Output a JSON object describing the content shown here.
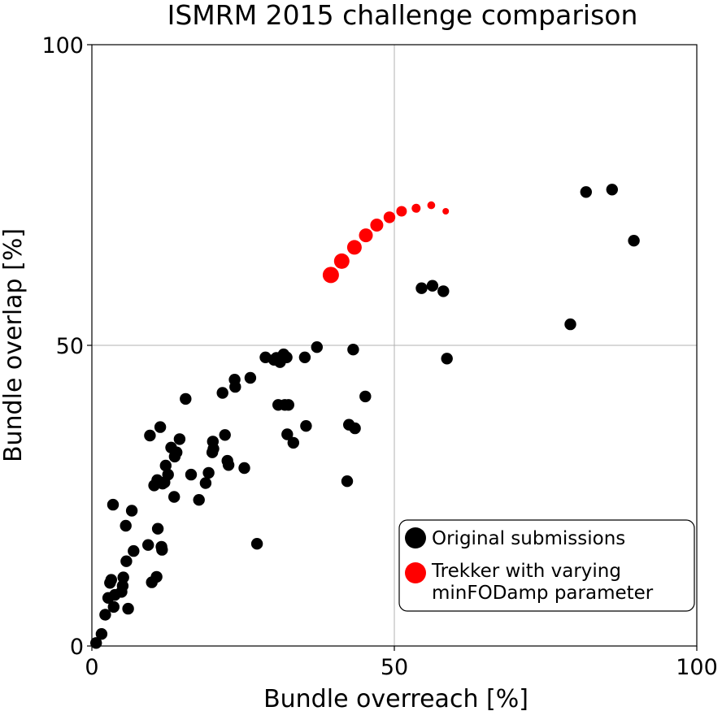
{
  "chart_data": {
    "type": "scatter",
    "title": "ISMRM 2015 challenge comparison",
    "xlabel": "Bundle overreach [%]",
    "ylabel": "Bundle overlap [%]",
    "xlim": [
      0,
      100
    ],
    "ylim": [
      0,
      100
    ],
    "xticks": [
      "0",
      "50",
      "100"
    ],
    "yticks": [
      "0",
      "50",
      "100"
    ],
    "grid": true,
    "legend_position": "lower-right",
    "series": [
      {
        "name": "Original submissions",
        "color": "#000000",
        "points": [
          [
            0.7,
            0.5
          ],
          [
            1.6,
            2.0
          ],
          [
            2.2,
            5.2
          ],
          [
            2.7,
            8.0
          ],
          [
            3.0,
            10.5
          ],
          [
            3.2,
            11.0
          ],
          [
            3.5,
            23.5
          ],
          [
            3.6,
            6.5
          ],
          [
            3.8,
            8.5
          ],
          [
            4.9,
            9.0
          ],
          [
            5.1,
            10.0
          ],
          [
            5.2,
            11.4
          ],
          [
            5.6,
            20.0
          ],
          [
            5.7,
            14.1
          ],
          [
            6.0,
            6.2
          ],
          [
            6.6,
            22.5
          ],
          [
            6.9,
            15.8
          ],
          [
            9.3,
            16.8
          ],
          [
            9.6,
            35.0
          ],
          [
            9.9,
            10.6
          ],
          [
            10.3,
            26.7
          ],
          [
            10.8,
            27.6
          ],
          [
            10.7,
            11.5
          ],
          [
            10.9,
            19.5
          ],
          [
            11.3,
            36.4
          ],
          [
            11.5,
            16.5
          ],
          [
            11.6,
            16.0
          ],
          [
            11.7,
            27.0
          ],
          [
            12.0,
            27.2
          ],
          [
            12.2,
            30.0
          ],
          [
            12.6,
            28.5
          ],
          [
            13.1,
            33.0
          ],
          [
            13.6,
            24.8
          ],
          [
            13.7,
            31.5
          ],
          [
            14.0,
            32.2
          ],
          [
            14.5,
            34.4
          ],
          [
            15.5,
            41.1
          ],
          [
            16.4,
            28.5
          ],
          [
            17.7,
            24.3
          ],
          [
            18.8,
            27.1
          ],
          [
            19.3,
            28.8
          ],
          [
            19.9,
            32.2
          ],
          [
            20.0,
            34.0
          ],
          [
            20.1,
            32.8
          ],
          [
            21.6,
            42.1
          ],
          [
            22.0,
            35.1
          ],
          [
            22.4,
            30.8
          ],
          [
            22.6,
            30.1
          ],
          [
            23.6,
            44.3
          ],
          [
            23.7,
            43.1
          ],
          [
            25.2,
            29.6
          ],
          [
            26.2,
            44.6
          ],
          [
            27.3,
            17.0
          ],
          [
            28.7,
            48.0
          ],
          [
            30.1,
            47.6
          ],
          [
            30.5,
            47.9
          ],
          [
            30.8,
            40.1
          ],
          [
            31.1,
            47.2
          ],
          [
            31.7,
            48.5
          ],
          [
            31.9,
            40.1
          ],
          [
            32.2,
            48.0
          ],
          [
            32.3,
            35.2
          ],
          [
            32.5,
            40.1
          ],
          [
            33.3,
            33.8
          ],
          [
            35.2,
            48.0
          ],
          [
            35.4,
            36.6
          ],
          [
            37.2,
            49.7
          ],
          [
            42.2,
            27.4
          ],
          [
            42.5,
            36.8
          ],
          [
            43.2,
            49.3
          ],
          [
            43.5,
            36.2
          ],
          [
            45.2,
            41.5
          ],
          [
            54.5,
            59.5
          ],
          [
            56.3,
            59.9
          ],
          [
            58.1,
            59.0
          ],
          [
            58.7,
            47.8
          ],
          [
            79.1,
            53.5
          ],
          [
            81.7,
            75.5
          ],
          [
            86.0,
            75.9
          ],
          [
            89.6,
            67.4
          ]
        ]
      },
      {
        "name": "Trekker with varying minFODamp parameter",
        "color": "#ff0000",
        "points": [
          [
            39.5,
            61.7
          ],
          [
            41.3,
            64.0
          ],
          [
            43.4,
            66.3
          ],
          [
            45.3,
            68.3
          ],
          [
            47.1,
            70.0
          ],
          [
            49.2,
            71.3
          ],
          [
            51.2,
            72.3
          ],
          [
            53.6,
            72.8
          ],
          [
            56.1,
            73.3
          ],
          [
            58.5,
            72.3
          ]
        ],
        "sizes": [
          10,
          9.5,
          9,
          8.5,
          8,
          7.2,
          6.5,
          5.5,
          4.8,
          4
        ]
      }
    ]
  }
}
